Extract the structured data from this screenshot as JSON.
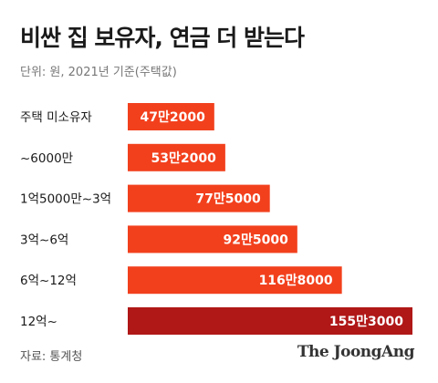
{
  "header": {
    "title": "비싼 집 보유자, 연금 더 받는다",
    "subtitle": "단위: 원, 2021년 기준(주택값)"
  },
  "footer": {
    "source": "자료: 통계청",
    "credit": "The JoongAng"
  },
  "colors": {
    "bar": "#f2401d",
    "bar_highlight": "#b01717",
    "label_text": "#ffffff",
    "category_text": "#1a1a1a"
  },
  "chart_data": {
    "type": "bar",
    "orientation": "horizontal",
    "categories": [
      "주택 미소유자",
      "~6000만",
      "1억5000만~3억",
      "3억~6억",
      "6억~12억",
      "12억~"
    ],
    "values": [
      472000,
      532000,
      775000,
      925000,
      1168000,
      1553000
    ],
    "value_labels": [
      "47만2000",
      "53만2000",
      "77만5000",
      "92만5000",
      "116만8000",
      "155만3000"
    ],
    "highlight_index": 5,
    "xlim": [
      0,
      1553000
    ],
    "grid": false,
    "legend": "none"
  }
}
